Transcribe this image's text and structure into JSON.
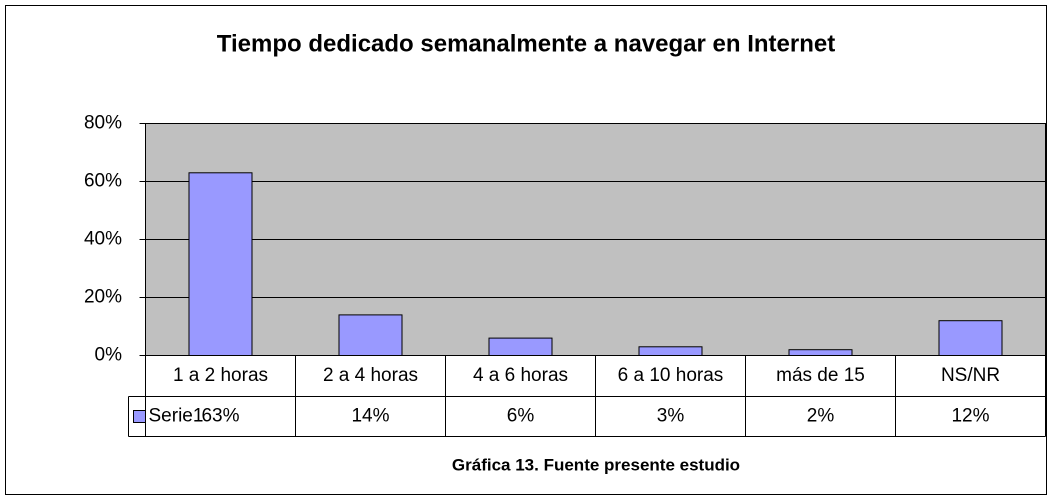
{
  "chart_data": {
    "type": "bar",
    "title": "Tiempo dedicado semanalmente a navegar en Internet",
    "categories": [
      "1 a 2 horas",
      "2 a 4 horas",
      "4 a 6 horas",
      "6 a 10 horas",
      "más de 15",
      "NS/NR"
    ],
    "series": [
      {
        "name": "Serie1",
        "color": "#9999ff",
        "values": [
          63,
          14,
          6,
          3,
          2,
          12
        ],
        "value_labels": [
          "63%",
          "14%",
          "6%",
          "3%",
          "2%",
          "12%"
        ]
      }
    ],
    "ylim": [
      0,
      80
    ],
    "yticks": [
      {
        "value": 0,
        "label": "0%"
      },
      {
        "value": 20,
        "label": "20%"
      },
      {
        "value": 40,
        "label": "40%"
      },
      {
        "value": 60,
        "label": "60%"
      },
      {
        "value": 80,
        "label": "80%"
      }
    ],
    "grid": true,
    "annotation": "Gráfica 13. Fuente presente estudio"
  }
}
